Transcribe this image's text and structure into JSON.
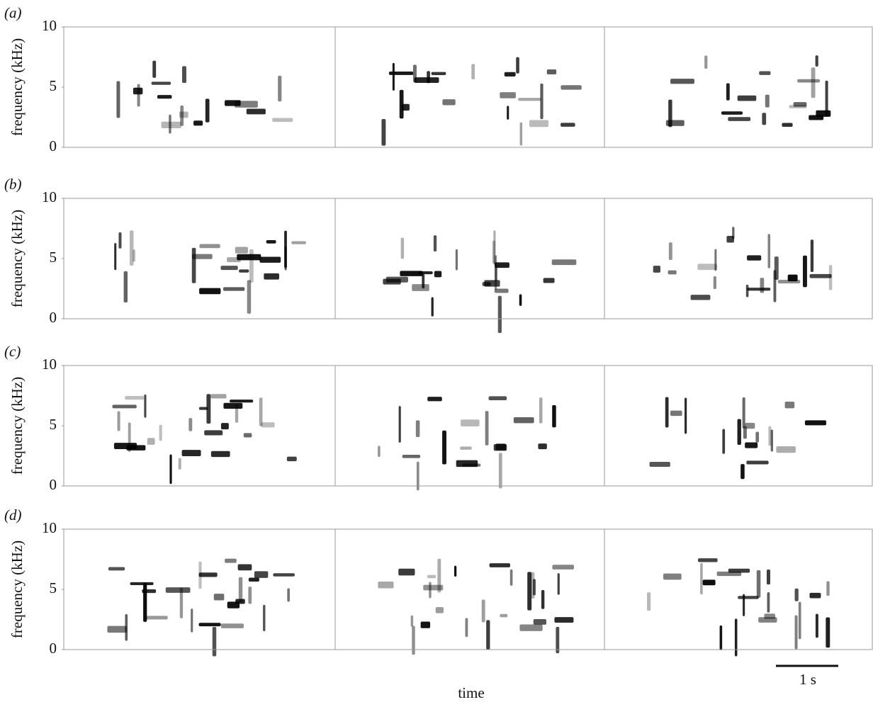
{
  "chart_data": [
    {
      "type": "spectrogram",
      "panel_label": "(a)",
      "y_label": "frequency (kHz)",
      "ylim": [
        0,
        10
      ],
      "yticks": [
        0,
        5,
        10
      ]
    },
    {
      "type": "spectrogram",
      "panel_label": "(b)",
      "y_label": "frequency (kHz)",
      "ylim": [
        0,
        10
      ],
      "yticks": [
        0,
        5,
        10
      ]
    },
    {
      "type": "spectrogram",
      "panel_label": "(c)",
      "y_label": "frequency (kHz)",
      "ylim": [
        0,
        10
      ],
      "yticks": [
        0,
        5,
        10
      ]
    },
    {
      "type": "spectrogram",
      "panel_label": "(d)",
      "y_label": "frequency (kHz)",
      "ylim": [
        0,
        10
      ],
      "yticks": [
        0,
        5,
        10
      ]
    }
  ],
  "figure": {
    "x_label": "time",
    "scale_bar_label": "1 s"
  }
}
